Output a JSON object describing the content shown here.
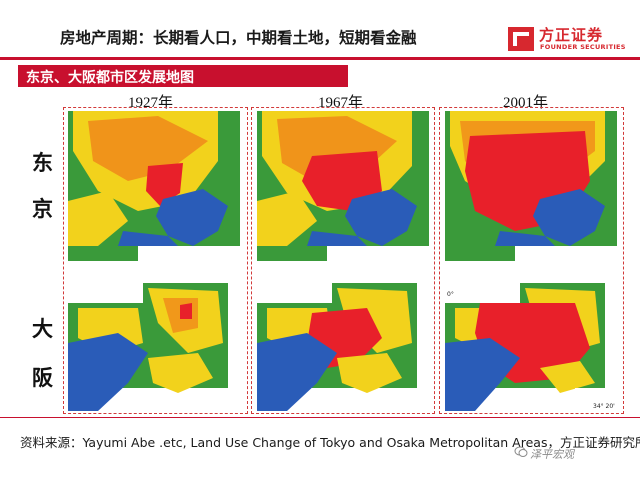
{
  "header": {
    "title": "房地产周期：长期看人口，中期看土地，短期看金融",
    "logo_cn": "方正证券",
    "logo_en": "FOUNDER SECURITIES"
  },
  "section": {
    "title": "东京、大阪都市区发展地图"
  },
  "years": [
    "1927年",
    "1967年",
    "2001年"
  ],
  "cities": {
    "tokyo": [
      "东",
      "京"
    ],
    "osaka": [
      "大",
      "阪"
    ]
  },
  "map_tags": {
    "osaka_2001_a": "0°",
    "osaka_2001_b": "34° 20'"
  },
  "colors": {
    "urban": "#e8202a",
    "water": "#2a5cb8",
    "forest": "#3a9a3a",
    "farmland": "#f2d21c",
    "mixed": "#f08a1a",
    "accent": "#c8102e"
  },
  "footer": {
    "source": "资料来源：Yayumi Abe .etc, Land Use Change of Tokyo and Osaka Metropolitan Areas，方正证券研究所",
    "watermark": "泽平宏观"
  }
}
